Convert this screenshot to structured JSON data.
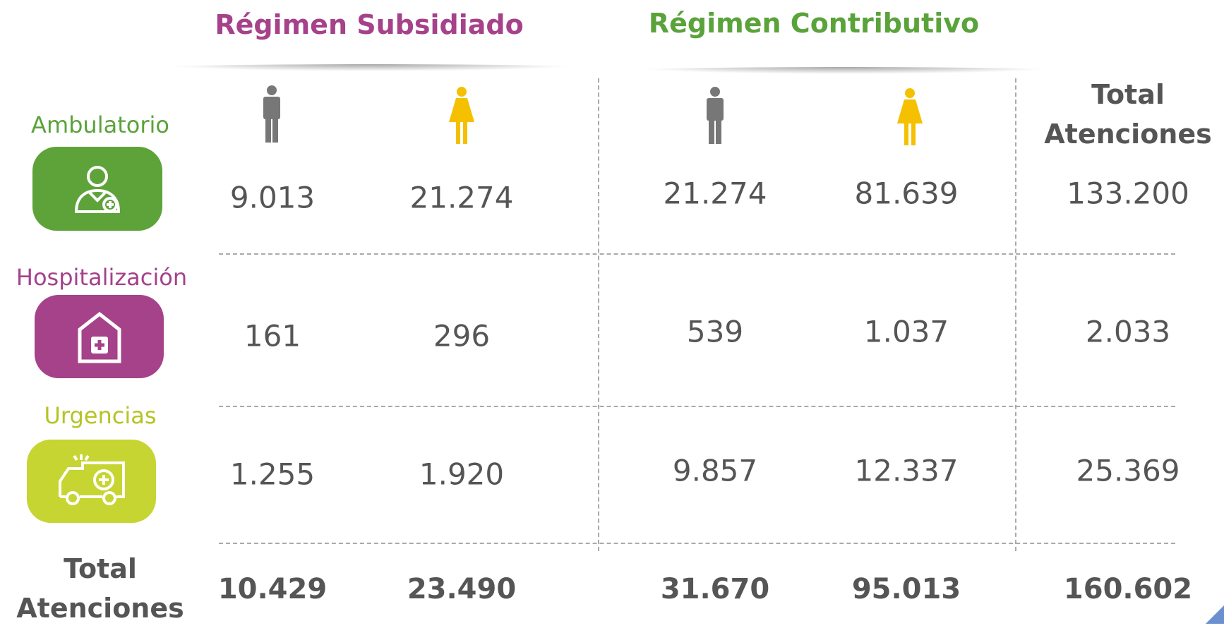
{
  "table": {
    "groups": [
      "Régimen Subsidiado",
      "Régimen Contributivo"
    ],
    "total_header": "Total Atenciones",
    "rows": [
      {
        "label": "Ambulatorio",
        "values": [
          "9.013",
          "21.274",
          "21.274",
          "81.639",
          "133.200"
        ]
      },
      {
        "label": "Hospitalización",
        "values": [
          "161",
          "296",
          "539",
          "1.037",
          "2.033"
        ]
      },
      {
        "label": "Urgencias",
        "values": [
          "1.255",
          "1.920",
          "9.857",
          "12.337",
          "25.369"
        ]
      }
    ],
    "footer": {
      "label": "Total Atenciones",
      "values": [
        "10.429",
        "23.490",
        "31.670",
        "95.013",
        "160.602"
      ]
    }
  }
}
